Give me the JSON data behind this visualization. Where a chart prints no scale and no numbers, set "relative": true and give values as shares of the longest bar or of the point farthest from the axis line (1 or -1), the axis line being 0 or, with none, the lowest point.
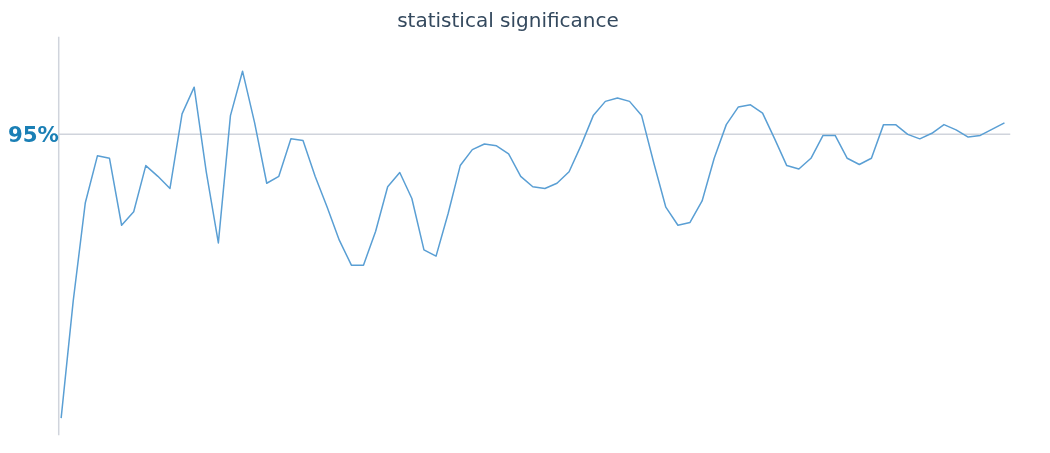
{
  "chart_data": {
    "type": "line",
    "title": "statistical significance",
    "relative": true,
    "categories": [
      null,
      null,
      null,
      null,
      null,
      null,
      null,
      null,
      null,
      null,
      null,
      null,
      null,
      null,
      null,
      null,
      null,
      null,
      null,
      null,
      null,
      null,
      null,
      null,
      null,
      null,
      null,
      null,
      null,
      null,
      null,
      null,
      null,
      null,
      null,
      null,
      null,
      null,
      null,
      null,
      null,
      null,
      null,
      null,
      null,
      null,
      null,
      null,
      null,
      null,
      null,
      null,
      null,
      null,
      null,
      null,
      null,
      null,
      null,
      null,
      null,
      null,
      null,
      null,
      null,
      null,
      null,
      null,
      null,
      null,
      null,
      null,
      null,
      null,
      null,
      null,
      null,
      null,
      null
    ],
    "series": [
      {
        "color": "#5a9fd4",
        "values": [
          0,
          0.338,
          0.621,
          0.756,
          0.749,
          0.556,
          0.595,
          0.728,
          0.697,
          0.662,
          0.877,
          0.954,
          0.71,
          0.505,
          0.872,
          1,
          0.851,
          0.677,
          0.697,
          0.805,
          0.8,
          0.697,
          0.608,
          0.513,
          0.441,
          0.441,
          0.538,
          0.667,
          0.708,
          0.633,
          0.485,
          0.467,
          0.59,
          0.728,
          0.774,
          0.79,
          0.785,
          0.762,
          0.697,
          0.667,
          0.662,
          0.677,
          0.71,
          0.787,
          0.872,
          0.913,
          0.923,
          0.913,
          0.872,
          0.736,
          0.608,
          0.556,
          0.564,
          0.626,
          0.749,
          0.846,
          0.897,
          0.903,
          0.879,
          0.805,
          0.728,
          0.718,
          0.749,
          0.815,
          0.815,
          0.749,
          0.731,
          0.749,
          0.846,
          0.846,
          0.818,
          0.805,
          0.821,
          0.846,
          0.831,
          0.81,
          0.815,
          0.833,
          0.851
        ]
      }
    ],
    "ref_lines": [
      {
        "axis": "y",
        "value": 0.818,
        "color": "#d0d4dc"
      }
    ],
    "annotations": [
      "95%"
    ],
    "grid": false
  }
}
